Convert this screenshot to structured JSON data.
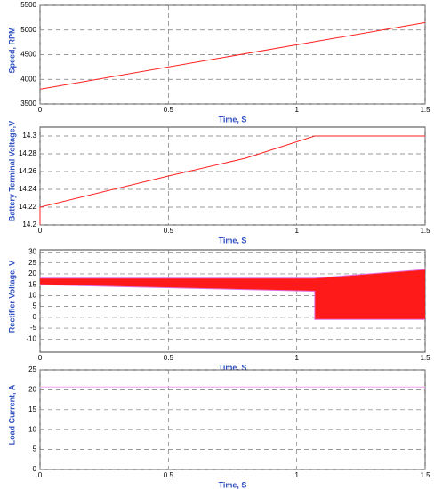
{
  "chart_data": [
    {
      "type": "line",
      "ylabel": "Speed, RPM",
      "xlabel": "Time, S",
      "xlim": [
        0,
        1.5
      ],
      "xticks": [
        0,
        0.5,
        1,
        1.5
      ],
      "ylim": [
        3500,
        5500
      ],
      "yticks": [
        3500,
        4000,
        4500,
        5000,
        5500
      ],
      "grid": true,
      "x": [
        0,
        1.5
      ],
      "series": [
        {
          "color": "#ff2020",
          "values": [
            3800,
            5150
          ]
        }
      ]
    },
    {
      "type": "line",
      "ylabel": "Battery Terminal Voltage,V",
      "xlabel": "Time, S",
      "xlim": [
        0,
        1.5
      ],
      "xticks": [
        0,
        0.5,
        1,
        1.5
      ],
      "ylim": [
        14.2,
        14.31
      ],
      "yticks": [
        14.2,
        14.22,
        14.24,
        14.26,
        14.28,
        14.3
      ],
      "grid": true,
      "x": [
        0,
        0,
        0.5,
        0.8,
        1.07,
        1.5
      ],
      "series": [
        {
          "color": "#ff2020",
          "values": [
            14.2,
            14.22,
            14.255,
            14.275,
            14.3,
            14.3
          ]
        }
      ]
    },
    {
      "type": "band",
      "ylabel": "Rectifier Voltage, V",
      "xlabel": "Time, S",
      "xlim": [
        0,
        1.5
      ],
      "xticks": [
        0,
        0.5,
        1,
        1.5
      ],
      "ylim": [
        -16,
        31
      ],
      "yticks": [
        -10,
        -5,
        0,
        5,
        10,
        15,
        20,
        25,
        30
      ],
      "grid": true,
      "x": [
        0,
        1.07,
        1.07,
        1.5
      ],
      "color": "#ff1a1a",
      "series": [
        {
          "color": "#e070e0",
          "values": [
            18,
            18,
            18,
            22
          ]
        },
        {
          "color": "#e070e0",
          "values": [
            15,
            12,
            -1,
            -1
          ]
        }
      ]
    },
    {
      "type": "line",
      "ylabel": "Load Current, A",
      "xlabel": "Time, S",
      "xlim": [
        0,
        1.5
      ],
      "xticks": [
        0,
        0.5,
        1,
        1.5
      ],
      "ylim": [
        0,
        25
      ],
      "yticks": [
        0,
        5,
        10,
        15,
        20,
        25
      ],
      "grid": true,
      "x": [
        0,
        1.5
      ],
      "series": [
        {
          "color": "#f0a0f0",
          "values": [
            20.7,
            20.7
          ]
        },
        {
          "color": "#e04020",
          "values": [
            20.2,
            20.2
          ]
        }
      ]
    }
  ]
}
